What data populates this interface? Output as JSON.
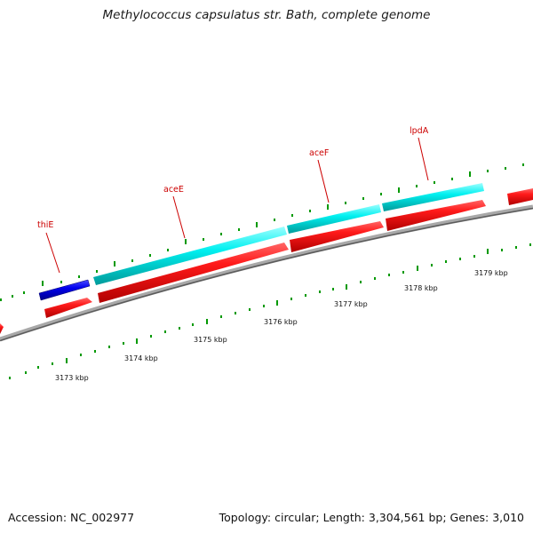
{
  "title": "Methylococcus capsulatus str. Bath, complete genome",
  "footer": {
    "accession": "Accession: NC_002977",
    "summary": "Topology: circular; Length: 3,304,561 bp; Genes: 3,010"
  },
  "colors": {
    "forward_gene": "#00e5e5",
    "reverse_gene": "#ee0000",
    "thiE_gene": "#0000cc",
    "backbone": "#808080",
    "ticks": "#007700",
    "label": "#cc0000"
  },
  "gene_labels": [
    {
      "name": "thiE"
    },
    {
      "name": "aceE"
    },
    {
      "name": "aceF"
    },
    {
      "name": "lpdA"
    }
  ],
  "scale_labels": [
    "3173 kbp",
    "3174 kbp",
    "3175 kbp",
    "3176 kbp",
    "3177 kbp",
    "3178 kbp",
    "3179 kbp"
  ]
}
